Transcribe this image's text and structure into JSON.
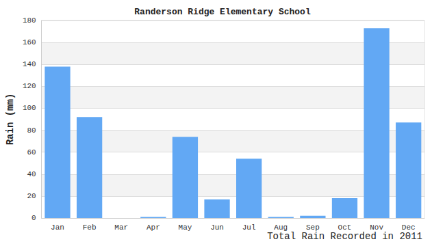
{
  "chart_data": {
    "type": "bar",
    "title": "Randerson Ridge Elementary School",
    "x_label": "Total Rain Recorded in 2011",
    "y_label": "Rain (mm)",
    "categories": [
      "Jan",
      "Feb",
      "Mar",
      "Apr",
      "May",
      "Jun",
      "Jul",
      "Aug",
      "Sep",
      "Oct",
      "Nov",
      "Dec"
    ],
    "values": [
      138,
      92,
      0,
      1,
      74,
      17,
      54,
      1,
      2,
      18,
      173,
      87
    ],
    "color": "#62a8f4",
    "ylim": [
      0,
      180
    ],
    "yticks": [
      0,
      20,
      40,
      60,
      80,
      100,
      120,
      140,
      160,
      180
    ],
    "grid": true
  }
}
